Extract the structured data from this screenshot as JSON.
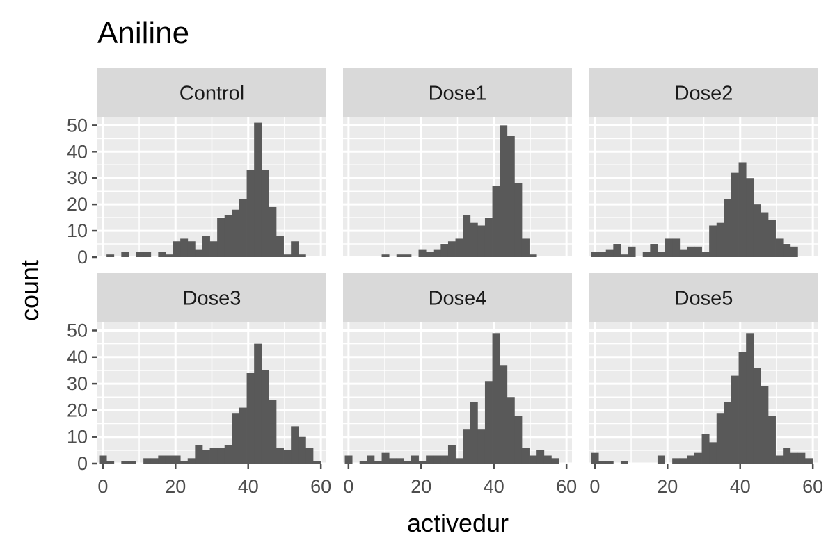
{
  "chart_data": {
    "type": "bar",
    "title": "Aniline",
    "xlabel": "activedur",
    "ylabel": "count",
    "xlim": [
      -1.5,
      61.5
    ],
    "ylim": [
      0,
      53
    ],
    "x_ticks": [
      0,
      20,
      40,
      60
    ],
    "y_ticks": [
      0,
      10,
      20,
      30,
      40,
      50
    ],
    "bin_width": 2.03,
    "bin_start": 0,
    "grid": true,
    "layout": "facet-2x3",
    "colors": {
      "panel_background": "#ebebeb",
      "grid": "#ffffff",
      "bar": "#595959",
      "strip_background": "#d9d9d9",
      "tick": "#4d4d4d"
    },
    "panels": [
      {
        "name": "Control",
        "values": [
          0,
          1,
          0,
          2,
          0,
          2,
          2,
          0,
          2,
          1,
          6,
          7,
          6,
          3,
          8,
          6,
          15,
          16,
          18,
          22,
          33,
          51,
          33,
          19,
          8,
          1,
          6,
          1,
          0
        ]
      },
      {
        "name": "Dose1",
        "values": [
          0,
          0,
          0,
          0,
          0,
          1,
          0,
          1,
          1,
          0,
          3,
          2,
          3,
          5,
          6,
          7,
          16,
          13,
          12,
          15,
          27,
          50,
          46,
          28,
          7,
          1,
          0,
          0,
          0
        ]
      },
      {
        "name": "Dose2",
        "values": [
          2,
          2,
          3,
          5,
          1,
          4,
          0,
          2,
          5,
          2,
          7,
          7,
          3,
          4,
          4,
          2,
          12,
          13,
          22,
          32,
          36,
          30,
          20,
          17,
          14,
          7,
          5,
          4,
          0
        ]
      },
      {
        "name": "Dose3",
        "values": [
          3,
          1,
          0,
          1,
          1,
          0,
          2,
          2,
          3,
          3,
          3,
          1,
          2,
          7,
          5,
          6,
          6,
          7,
          19,
          21,
          34,
          45,
          35,
          24,
          6,
          5,
          14,
          10,
          6,
          1
        ]
      },
      {
        "name": "Dose4",
        "values": [
          3,
          0,
          1,
          3,
          1,
          4,
          2,
          2,
          1,
          3,
          1,
          3,
          3,
          3,
          7,
          2,
          13,
          23,
          13,
          31,
          49,
          37,
          25,
          18,
          6,
          3,
          5,
          3,
          2
        ]
      },
      {
        "name": "Dose5",
        "values": [
          4,
          1,
          1,
          0,
          1,
          0,
          0,
          0,
          0,
          3,
          0,
          2,
          2,
          3,
          4,
          11,
          8,
          19,
          23,
          33,
          42,
          49,
          36,
          29,
          18,
          3,
          6,
          4,
          4,
          2
        ]
      }
    ]
  }
}
